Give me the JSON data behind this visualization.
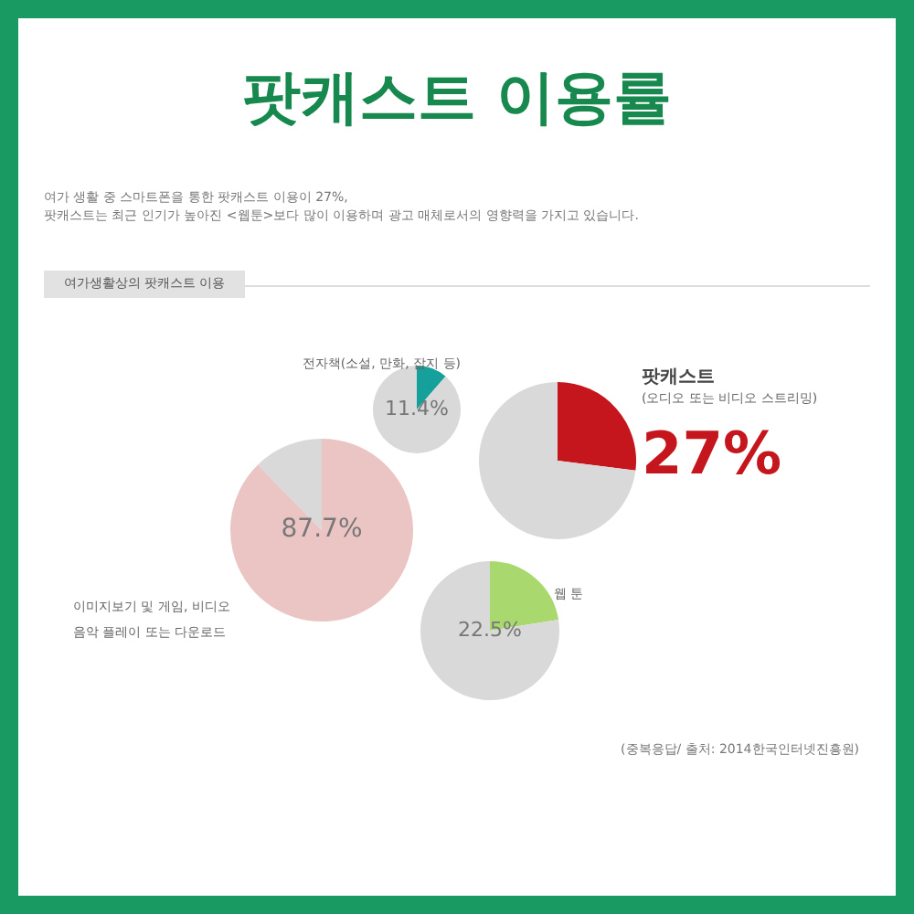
{
  "chart_data": [
    {
      "type": "pie",
      "title": "팟캐스트 이용률",
      "subtitle": "여가 생활 중 스마트폰을 통한 팟캐스트 이용이 27%,\n팟캐스트는 최근 인기가 높아진 <웹툰>보다 많이 이용하며 광고 매체로서의 영향력을 가지고 있습니다.",
      "legend_title": "여가생활상의 팟캐스트 이용",
      "categories": [
        "전자책(소설, 만화, 잡지 등)",
        null
      ],
      "values": [
        11.4,
        88.6
      ],
      "colors": [
        "#16a09c",
        "#d9d9d9"
      ],
      "value_labels": [
        "11.4%",
        null
      ]
    },
    {
      "type": "pie",
      "categories": [
        "팟캐스트",
        null
      ],
      "annotations": [
        "(오디오 또는 비디오 스트리밍)"
      ],
      "values": [
        27,
        73
      ],
      "colors": [
        "#c4161c",
        "#d9d9d9"
      ],
      "value_labels": [
        "27%",
        null
      ]
    },
    {
      "type": "pie",
      "categories": [
        "이미지보기 및 게임, 비디오\n음악 플레이 또는 다운로드",
        null
      ],
      "values": [
        87.7,
        12.3
      ],
      "colors": [
        "#ebc4c4",
        "#d9d9d9"
      ],
      "value_labels": [
        "87.7%",
        null
      ]
    },
    {
      "type": "pie",
      "categories": [
        "웹 툰",
        null
      ],
      "annotations": [
        "(중복응답/ 출처: 2014한국인터넷진흥원)"
      ],
      "values": [
        22.5,
        77.5
      ],
      "colors": [
        "#a8d86e",
        "#d9d9d9"
      ],
      "value_labels": [
        "22.5%",
        null
      ]
    }
  ]
}
